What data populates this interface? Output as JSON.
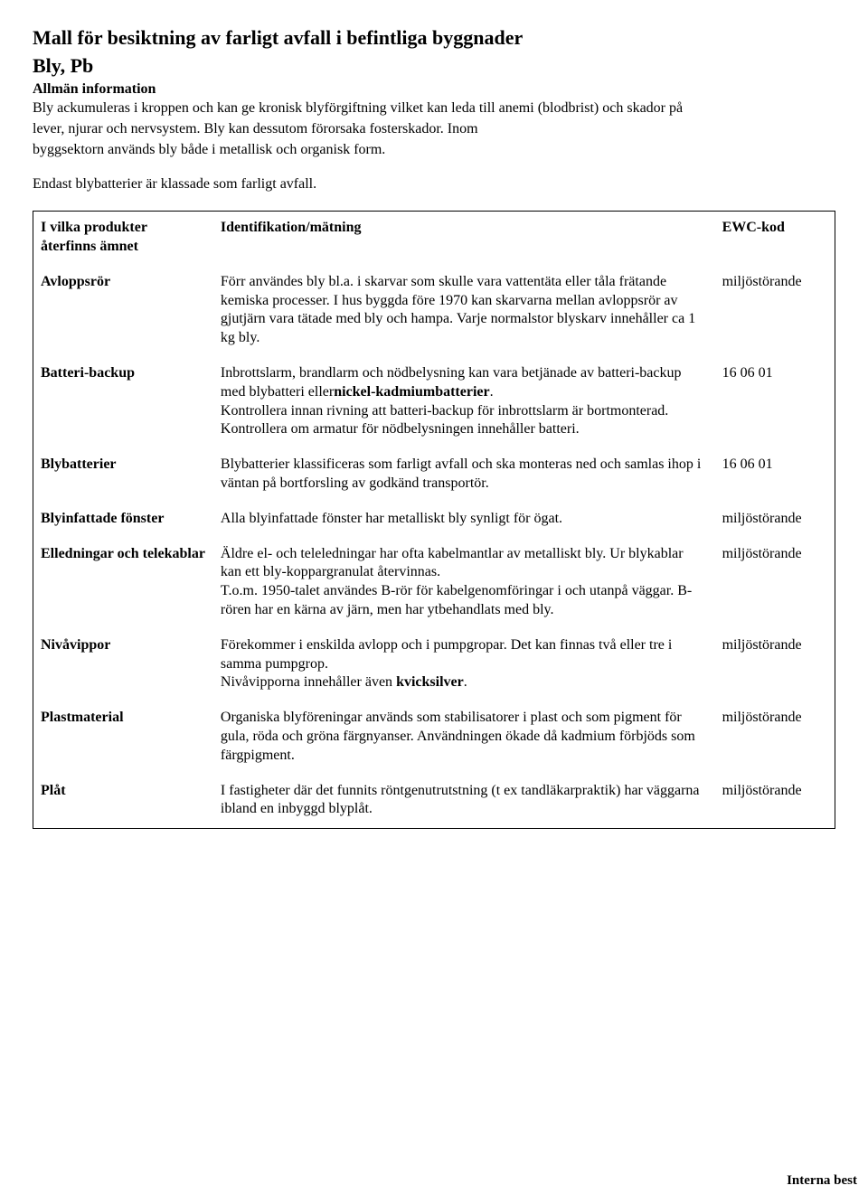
{
  "title": "Mall för besiktning av farligt avfall i befintliga byggnader",
  "subtitle": "Bly, Pb",
  "section_heading": "Allmän information",
  "intro_lines": [
    "Bly ackumuleras i kroppen och kan ge kronisk blyförgiftning vilket kan leda till anemi (blodbrist) och skador på",
    "lever, njurar och nervsystem. Bly kan dessutom förorsaka fosterskador. Inom",
    "byggsektorn används bly både i metallisk och organisk form."
  ],
  "intro_note": "Endast blybatterier är klassade som farligt avfall.",
  "table": {
    "header": {
      "col1_line1": "I vilka produkter",
      "col1_line2": "återfinns ämnet",
      "col2": "Identifikation/mätning",
      "col3": "EWC-kod"
    },
    "rows": [
      {
        "product": "Avloppsrör",
        "desc_html": "Förr användes bly bl.a. i skarvar som skulle vara vattentäta eller tåla frätande kemiska processer. I hus byggda före 1970 kan skarvarna mellan avloppsrör av gjutjärn vara tätade med bly och hampa. Varje normalstor blyskarv innehåller ca 1 kg bly.",
        "code": "miljöstörande"
      },
      {
        "product": "Batteri-backup",
        "desc_html": "Inbrottslarm, brandlarm och nödbelysning kan vara betjänade av batteri-backup med blybatteri eller<b>nickel-kadmiumbatterier</b>.<br>Kontrollera innan rivning att batteri-backup för inbrottslarm är bortmonterad.<br>Kontrollera om armatur för nödbelysningen innehåller batteri.",
        "code": "16 06 01"
      },
      {
        "product": "Blybatterier",
        "desc_html": "Blybatterier klassificeras som farligt avfall och ska monteras ned och samlas ihop i väntan på bortforsling av godkänd transportör.",
        "code": "16 06 01"
      },
      {
        "product": "Blyinfattade fönster",
        "desc_html": "Alla blyinfattade fönster har metalliskt bly synligt för ögat.",
        "code": "miljöstörande"
      },
      {
        "product": "Elledningar och telekablar",
        "desc_html": "Äldre el- och teleledningar har ofta kabelmantlar av metalliskt bly. Ur blykablar kan ett bly-koppargranulat återvinnas.<br>T.o.m. 1950-talet användes B-rör för kabelgenomföringar i och utanpå väggar. B-rören har en kärna av järn, men har ytbehandlats med bly.",
        "code": "miljöstörande"
      },
      {
        "product": "Nivåvippor",
        "desc_html": "Förekommer i enskilda avlopp och i pumpgropar. Det kan finnas två eller tre i samma pumpgrop.<br>Nivåvipporna innehåller även <b>kvicksilver</b>.",
        "code": "miljöstörande"
      },
      {
        "product": "Plastmaterial",
        "desc_html": "Organiska blyföreningar används som stabilisatorer i plast och som pigment för gula, röda och gröna färgnyanser. Användningen ökade då kadmium förbjöds som färgpigment.",
        "code": "miljöstörande"
      },
      {
        "product": "Plåt",
        "desc_html": "I fastigheter där det funnits röntgenutrutstning (t ex tandläkarpraktik) har väggarna ibland en inbyggd blyplåt.",
        "code": "miljöstörande"
      }
    ]
  },
  "footer_cut": "Interna best"
}
